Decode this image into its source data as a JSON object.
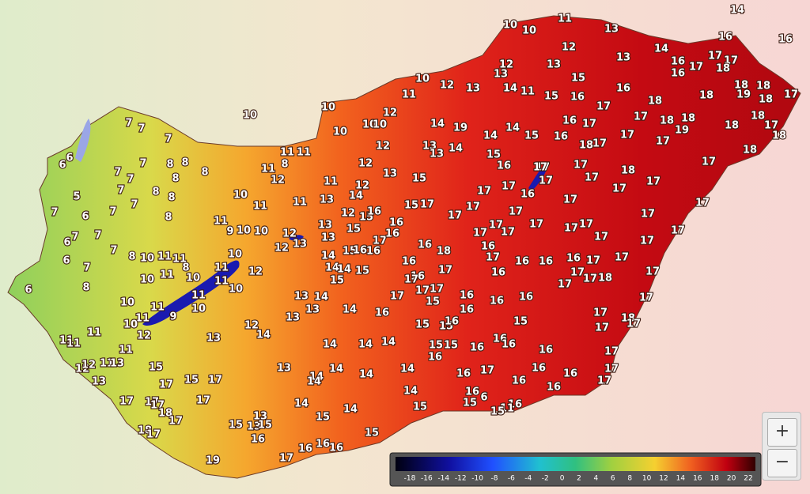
{
  "map": {
    "stations": [
      10,
      10,
      11,
      13,
      14,
      16,
      16,
      12,
      12,
      13,
      13,
      13,
      14,
      16,
      17,
      17,
      17,
      18,
      16,
      15,
      10,
      12,
      13,
      14,
      11,
      15,
      16,
      16,
      17,
      18,
      18,
      18,
      18,
      19,
      18,
      17,
      11,
      10,
      12,
      10,
      10,
      10,
      14,
      19,
      14,
      14,
      15,
      16,
      17,
      17,
      18,
      18,
      19,
      17,
      18,
      17,
      18,
      18,
      18,
      7,
      7,
      7,
      10,
      11,
      11,
      12,
      13,
      13,
      14,
      15,
      16,
      18,
      17,
      17,
      17,
      18,
      17,
      17,
      17,
      17,
      17,
      16,
      6,
      6,
      5,
      7,
      6,
      7,
      7,
      7,
      7,
      7,
      8,
      8,
      8,
      8,
      8,
      8,
      8,
      7,
      7,
      7,
      6,
      6,
      7,
      7,
      8,
      8,
      6,
      10,
      11,
      11,
      11,
      10,
      10,
      8,
      11,
      9,
      10,
      10,
      10,
      11,
      11,
      12,
      8,
      11,
      13,
      11,
      12,
      13,
      12,
      13,
      13,
      14,
      14,
      15,
      14,
      15,
      15,
      16,
      16,
      17,
      16,
      16,
      12,
      14,
      12,
      15,
      15,
      16,
      13,
      12,
      15,
      17,
      17,
      15,
      17,
      17,
      17,
      16,
      17,
      17,
      17,
      17,
      17,
      17,
      17,
      17,
      17,
      17,
      17,
      17,
      17,
      17,
      17,
      16,
      17,
      17,
      18,
      17,
      17,
      17,
      17,
      17,
      16,
      16,
      16,
      17,
      16,
      16,
      18,
      16,
      17,
      16,
      17,
      17,
      17,
      17,
      16,
      16,
      16,
      13,
      14,
      13,
      13,
      14,
      16,
      15,
      16,
      15,
      15,
      16,
      15,
      17,
      18,
      17,
      17,
      10,
      11,
      9,
      10,
      11,
      10,
      12,
      11,
      11,
      10,
      11,
      10,
      12,
      11,
      11,
      11,
      11,
      13,
      12,
      14,
      14,
      14,
      14,
      15,
      15,
      16,
      16,
      16,
      16,
      17,
      12,
      12,
      11,
      13,
      15,
      13,
      13,
      14,
      14,
      14,
      14,
      16,
      16,
      17,
      16,
      16,
      16,
      17,
      17,
      16,
      17,
      15,
      17,
      14,
      14,
      16,
      6,
      15,
      16,
      11,
      15,
      15,
      14,
      14,
      17,
      17,
      17,
      17,
      18,
      17,
      13,
      13,
      15,
      15,
      15,
      18,
      17,
      16,
      15,
      16,
      16,
      16,
      17,
      19
    ],
    "legend": {
      "ticks": [
        -18,
        -16,
        -14,
        -12,
        -10,
        -8,
        -6,
        -4,
        -2,
        0,
        2,
        4,
        6,
        8,
        10,
        12,
        14,
        16,
        18,
        20,
        22
      ]
    }
  },
  "controls": {
    "zoom_in": "+",
    "zoom_out": "−"
  }
}
